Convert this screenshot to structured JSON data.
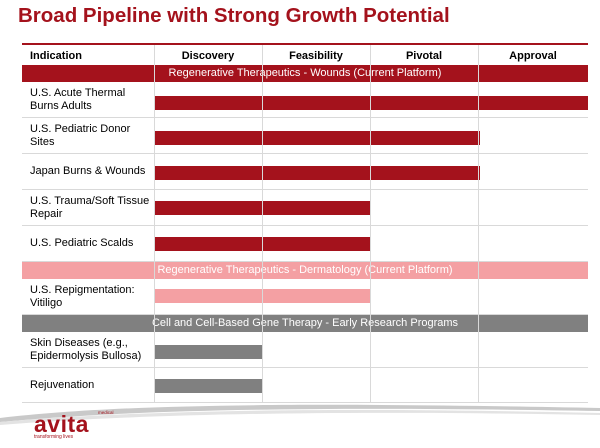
{
  "title": "Broad Pipeline with Strong Growth Potential",
  "header": {
    "indication": "Indication",
    "stages": [
      "Discovery",
      "Feasibility",
      "Pivotal",
      "Approval"
    ]
  },
  "sections": [
    {
      "label": "Regenerative Therapeutics - Wounds (Current Platform)",
      "color": "#a4121c",
      "text_color": "#ffffff"
    },
    {
      "label": "Regenerative Therapeutics - Dermatology (Current Platform)",
      "color": "#f4a0a3",
      "text_color": "#ffffff"
    },
    {
      "label": "Cell and Cell-Based Gene Therapy - Early Research Programs",
      "color": "#808080",
      "text_color": "#ffffff"
    }
  ],
  "rows": [
    {
      "indication": "U.S. Acute Thermal Burns Adults",
      "section": 0,
      "progress_stages": 4.0,
      "bar_color": "#a4121c"
    },
    {
      "indication": "U.S. Pediatric Donor Sites",
      "section": 0,
      "progress_stages": 3.0,
      "bar_color": "#a4121c"
    },
    {
      "indication": "Japan Burns & Wounds",
      "section": 0,
      "progress_stages": 3.0,
      "bar_color": "#a4121c"
    },
    {
      "indication": "U.S. Trauma/Soft Tissue Repair",
      "section": 0,
      "progress_stages": 2.0,
      "bar_color": "#a4121c"
    },
    {
      "indication": "U.S. Pediatric Scalds",
      "section": 0,
      "progress_stages": 2.0,
      "bar_color": "#a4121c"
    },
    {
      "indication": "U.S. Repigmentation: Vitiligo",
      "section": 1,
      "progress_stages": 2.0,
      "bar_color": "#f4a0a3"
    },
    {
      "indication": "Skin Diseases (e.g., Epidermolysis Bullosa)",
      "section": 2,
      "progress_stages": 1.0,
      "bar_color": "#808080"
    },
    {
      "indication": "Rejuvenation",
      "section": 2,
      "progress_stages": 1.0,
      "bar_color": "#808080"
    }
  ],
  "logo": {
    "word": "avita",
    "small": "medical",
    "tagline": "transforming lives"
  }
}
